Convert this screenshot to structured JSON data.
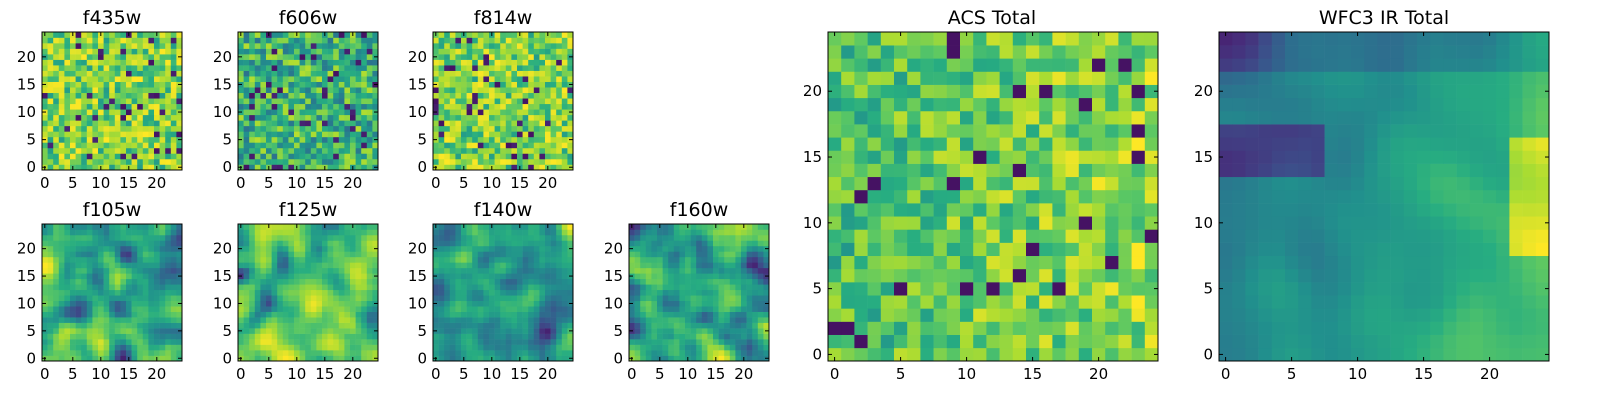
{
  "chart_data": [
    {
      "type": "heatmap",
      "title": "f435w",
      "xticks": [
        0,
        5,
        10,
        15,
        20
      ],
      "yticks": [
        0,
        5,
        10,
        15,
        20
      ],
      "grid_size": 25,
      "xlim": [
        -0.5,
        24.5
      ],
      "ylim": [
        -0.5,
        24.5
      ],
      "colormap": "viridis",
      "style": "noisy-bright"
    },
    {
      "type": "heatmap",
      "title": "f606w",
      "xticks": [
        0,
        5,
        10,
        15,
        20
      ],
      "yticks": [
        0,
        5,
        10,
        15,
        20
      ],
      "grid_size": 25,
      "xlim": [
        -0.5,
        24.5
      ],
      "ylim": [
        -0.5,
        24.5
      ],
      "colormap": "viridis",
      "style": "noisy-mid"
    },
    {
      "type": "heatmap",
      "title": "f814w",
      "xticks": [
        0,
        5,
        10,
        15,
        20
      ],
      "yticks": [
        0,
        5,
        10,
        15,
        20
      ],
      "grid_size": 25,
      "xlim": [
        -0.5,
        24.5
      ],
      "ylim": [
        -0.5,
        24.5
      ],
      "colormap": "viridis",
      "style": "noisy-bright"
    },
    {
      "type": "heatmap",
      "title": "f105w",
      "xticks": [
        0,
        5,
        10,
        15,
        20
      ],
      "yticks": [
        0,
        5,
        10,
        15,
        20
      ],
      "grid_size": 25,
      "xlim": [
        -0.5,
        24.5
      ],
      "ylim": [
        -0.5,
        24.5
      ],
      "colormap": "viridis",
      "style": "smooth"
    },
    {
      "type": "heatmap",
      "title": "f125w",
      "xticks": [
        0,
        5,
        10,
        15,
        20
      ],
      "yticks": [
        0,
        5,
        10,
        15,
        20
      ],
      "grid_size": 25,
      "xlim": [
        -0.5,
        24.5
      ],
      "ylim": [
        -0.5,
        24.5
      ],
      "colormap": "viridis",
      "style": "smooth-bright"
    },
    {
      "type": "heatmap",
      "title": "f140w",
      "xticks": [
        0,
        5,
        10,
        15,
        20
      ],
      "yticks": [
        0,
        5,
        10,
        15,
        20
      ],
      "grid_size": 25,
      "xlim": [
        -0.5,
        24.5
      ],
      "ylim": [
        -0.5,
        24.5
      ],
      "colormap": "viridis",
      "style": "smooth"
    },
    {
      "type": "heatmap",
      "title": "f160w",
      "xticks": [
        0,
        5,
        10,
        15,
        20
      ],
      "yticks": [
        0,
        5,
        10,
        15,
        20
      ],
      "grid_size": 25,
      "xlim": [
        -0.5,
        24.5
      ],
      "ylim": [
        -0.5,
        24.5
      ],
      "colormap": "viridis",
      "style": "smooth"
    },
    {
      "type": "heatmap",
      "title": "ACS Total",
      "xticks": [
        0,
        5,
        10,
        15,
        20
      ],
      "yticks": [
        0,
        5,
        10,
        15,
        20
      ],
      "grid_size": 25,
      "xlim": [
        -0.5,
        24.5
      ],
      "ylim": [
        -0.5,
        24.5
      ],
      "colormap": "viridis",
      "style": "acs"
    },
    {
      "type": "heatmap",
      "title": "WFC3 IR Total",
      "xticks": [
        0,
        5,
        10,
        15,
        20
      ],
      "yticks": [
        0,
        5,
        10,
        15,
        20
      ],
      "grid_size": 25,
      "xlim": [
        -0.5,
        24.5
      ],
      "ylim": [
        -0.5,
        24.5
      ],
      "colormap": "viridis",
      "style": "wfc3"
    }
  ]
}
